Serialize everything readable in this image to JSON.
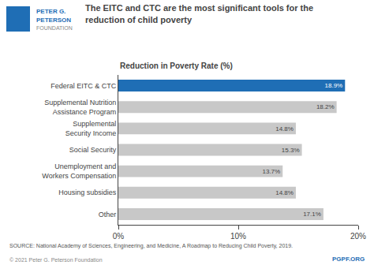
{
  "chart_data": {
    "type": "bar",
    "orientation": "horizontal",
    "title": "The EITC and CTC are the most significant tools for the\nreduction of child poverty",
    "subtitle": "Reduction in Poverty Rate (%)",
    "categories": [
      "Other",
      "Housing subsidies",
      "Unemployment and\nWorkers Compensation",
      "Social Security",
      "Supplemental\nSecurity Income",
      "Supplemental Nutrition\nAssistance Program",
      "Federal EITC & CTC"
    ],
    "values": [
      17.1,
      14.8,
      13.7,
      15.3,
      14.8,
      18.2,
      18.9
    ],
    "value_labels": [
      "17.1%",
      "14.8%",
      "13.7%",
      "15.3%",
      "14.8%",
      "18.2%",
      "18.9%"
    ],
    "data_labels": true,
    "colors": [
      "#c8c8c8",
      "#c8c8c8",
      "#c8c8c8",
      "#c8c8c8",
      "#c8c8c8",
      "#c8c8c8",
      "#1f6eb5"
    ],
    "xlim": [
      0,
      20
    ],
    "xticks": [
      {
        "value": 0,
        "label": "0%"
      },
      {
        "value": 10,
        "label": "10%"
      },
      {
        "value": 20,
        "label": "20%"
      }
    ],
    "grid": false,
    "annotations": [
      "SOURCE: National Academy of Sciences, Engineering, and Medicine, A Roadmap to Reducing Child Poverty, 2019.",
      "© 2021 Peter G. Peterson Foundation",
      "PGPF.ORG",
      "PETER G.",
      "PETERSON",
      "FOUNDATION"
    ]
  }
}
